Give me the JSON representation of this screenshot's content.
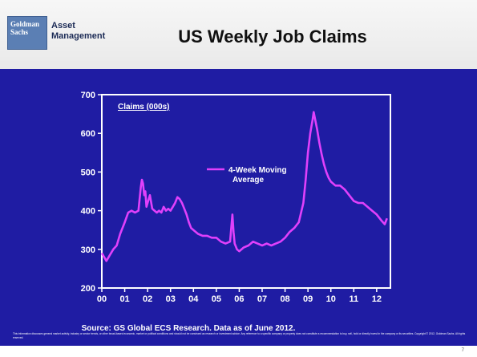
{
  "header": {
    "logo_line1": "Goldman",
    "logo_line2": "Sachs",
    "brand_line1": "Asset",
    "brand_line2": "Management",
    "title": "US Weekly Job Claims"
  },
  "footer": {
    "source": "Source: GS Global ECS Research. Data as of June 2012.",
    "disclaimer": "This information discusses general market activity, industry or sector trends, or other broad-based economic, market or political conditions and should not be construed as research or investment advice. Any reference to a specific company or property does not constitute a recommendation to buy, sell, hold or directly invest in the company or its securities. Copyright © 2012, Goldman Sachs. All rights reserved.",
    "page_number": "7"
  },
  "colors": {
    "slide_bg": "#1f1ca3",
    "series_line": "#e040fb",
    "frame": "#ffffff"
  },
  "chart_data": {
    "type": "line",
    "title": "",
    "inset_label": "Claims (000s)",
    "xlabel": "",
    "ylabel": "",
    "x_ticks": [
      "00",
      "01",
      "02",
      "03",
      "04",
      "05",
      "06",
      "07",
      "08",
      "09",
      "10",
      "11",
      "12"
    ],
    "y_ticks": [
      200,
      300,
      400,
      500,
      600,
      700
    ],
    "ylim": [
      200,
      700
    ],
    "xlim": [
      2000,
      2012.6
    ],
    "grid": false,
    "series": [
      {
        "name": "4-Week Moving Average",
        "x": [
          2000.0,
          2000.1,
          2000.2,
          2000.35,
          2000.5,
          2000.65,
          2000.8,
          2001.0,
          2001.15,
          2001.3,
          2001.45,
          2001.6,
          2001.7,
          2001.75,
          2001.8,
          2001.85,
          2001.9,
          2001.95,
          2002.0,
          2002.1,
          2002.2,
          2002.3,
          2002.4,
          2002.5,
          2002.6,
          2002.7,
          2002.8,
          2002.9,
          2003.0,
          2003.1,
          2003.2,
          2003.3,
          2003.4,
          2003.5,
          2003.6,
          2003.7,
          2003.8,
          2003.9,
          2004.0,
          2004.2,
          2004.4,
          2004.6,
          2004.8,
          2005.0,
          2005.2,
          2005.4,
          2005.6,
          2005.7,
          2005.75,
          2005.8,
          2005.9,
          2006.0,
          2006.2,
          2006.4,
          2006.6,
          2006.8,
          2007.0,
          2007.2,
          2007.4,
          2007.6,
          2007.8,
          2008.0,
          2008.2,
          2008.4,
          2008.6,
          2008.8,
          2008.9,
          2009.0,
          2009.1,
          2009.2,
          2009.25,
          2009.3,
          2009.4,
          2009.5,
          2009.6,
          2009.7,
          2009.8,
          2009.9,
          2010.0,
          2010.2,
          2010.4,
          2010.6,
          2010.8,
          2011.0,
          2011.2,
          2011.4,
          2011.6,
          2011.8,
          2012.0,
          2012.2,
          2012.35,
          2012.45
        ],
        "values": [
          290,
          280,
          270,
          285,
          300,
          310,
          340,
          370,
          395,
          400,
          395,
          400,
          460,
          480,
          470,
          440,
          450,
          410,
          420,
          440,
          405,
          400,
          395,
          400,
          395,
          410,
          400,
          405,
          400,
          410,
          420,
          435,
          430,
          420,
          405,
          390,
          370,
          355,
          350,
          340,
          335,
          335,
          330,
          330,
          320,
          315,
          320,
          390,
          345,
          315,
          300,
          295,
          305,
          310,
          320,
          315,
          310,
          315,
          310,
          315,
          320,
          330,
          345,
          355,
          370,
          420,
          480,
          550,
          600,
          635,
          655,
          640,
          610,
          575,
          545,
          520,
          500,
          485,
          475,
          465,
          465,
          455,
          440,
          425,
          420,
          420,
          410,
          400,
          390,
          375,
          365,
          380
        ]
      }
    ]
  }
}
